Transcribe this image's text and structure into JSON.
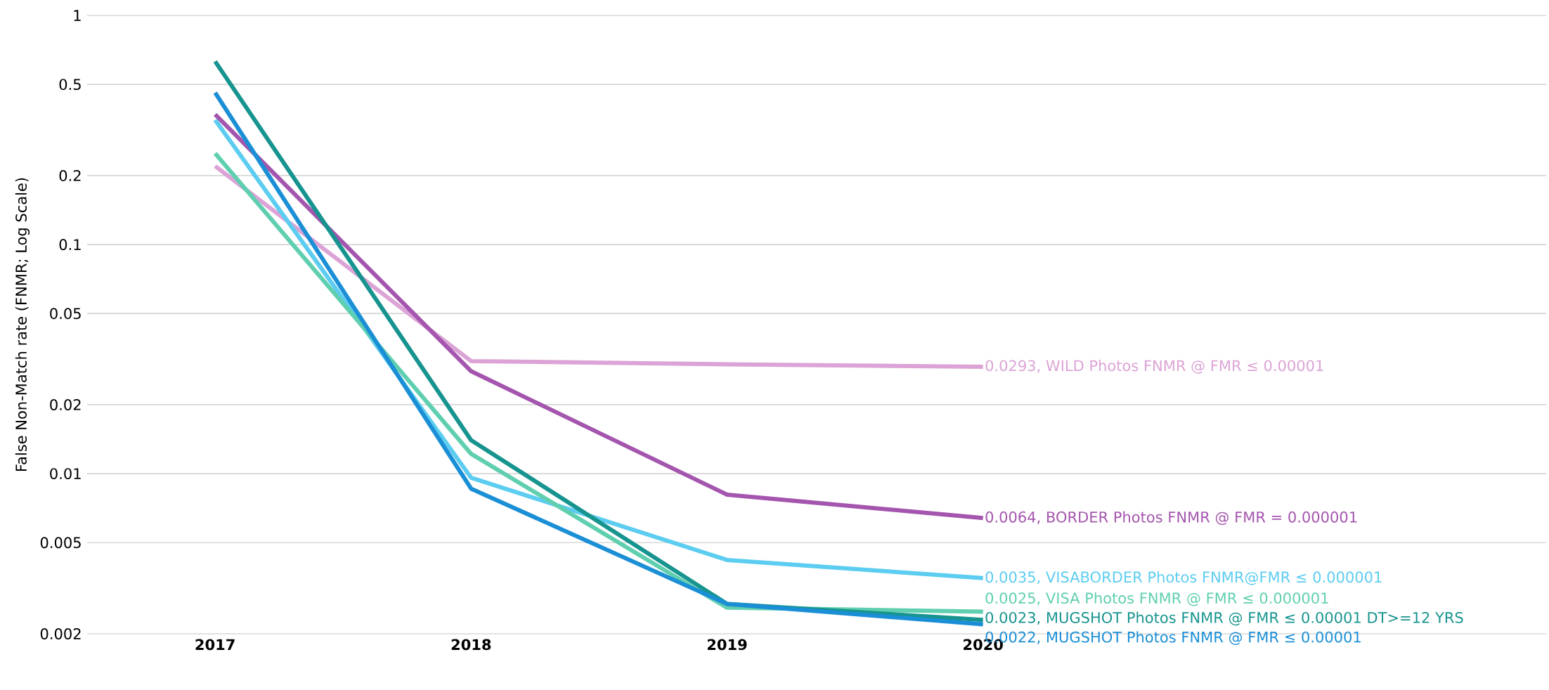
{
  "chart_data": {
    "type": "line",
    "ylabel": "False Non-Match rate (FNMR; Log Scale)",
    "categories": [
      "2017",
      "2018",
      "2019",
      "2020"
    ],
    "log": "y",
    "ylim": [
      0.002,
      1
    ],
    "yticks": [
      0.002,
      0.005,
      0.01,
      0.02,
      0.05,
      0.1,
      0.2,
      0.5,
      1
    ],
    "grid": "y",
    "line_style": "solid",
    "series": [
      {
        "name": "0.0293, WILD Photos FNMR @ FMR ≤ 0.00001",
        "color": "#dca3d6",
        "values": [
          0.22,
          0.031,
          0.03,
          0.0293
        ]
      },
      {
        "name": "0.0064, BORDER Photos FNMR @ FMR = 0.000001",
        "color": "#a455ae",
        "values": [
          0.37,
          0.028,
          0.0081,
          0.0064
        ]
      },
      {
        "name": "0.0035, VISABORDER Photos FNMR@FMR ≤ 0.000001",
        "color": "#5ccdf0",
        "values": [
          0.35,
          0.0096,
          0.0042,
          0.0035
        ]
      },
      {
        "name": "0.0025, VISA Photos FNMR @ FMR ≤ 0.000001",
        "color": "#5fcfb0",
        "values": [
          0.25,
          0.0122,
          0.0026,
          0.0025
        ]
      },
      {
        "name": "0.0023, MUGSHOT Photos FNMR @ FMR ≤ 0.00001 DT>=12 YRS",
        "color": "#17948f",
        "values": [
          0.63,
          0.014,
          0.0027,
          0.0023
        ]
      },
      {
        "name": "0.0022, MUGSHOT Photos FNMR @ FMR ≤ 0.00001",
        "color": "#1b8fd6",
        "values": [
          0.46,
          0.0086,
          0.0027,
          0.0022
        ]
      }
    ]
  }
}
